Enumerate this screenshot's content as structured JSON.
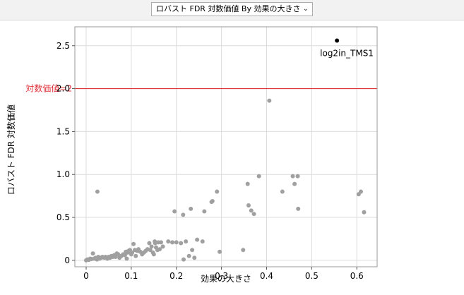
{
  "header": {
    "selector_label": "ロバスト FDR 対数価値 By 効果の大きさ",
    "selector_icon": "chevron-down-icon"
  },
  "chart_data": {
    "type": "scatter",
    "xlabel": "効果の大きさ",
    "ylabel": "ロバスト FDR 対数価値",
    "xlim": [
      -0.025,
      0.645
    ],
    "ylim": [
      -0.075,
      2.72
    ],
    "xticks": [
      0,
      0.1,
      0.2,
      0.3,
      0.4,
      0.5,
      0.6
    ],
    "xtick_labels": [
      "0",
      "0.1",
      "0.2",
      "0.3",
      "0.4",
      "0.5",
      "0.6"
    ],
    "yticks": [
      0,
      0.5,
      1.0,
      1.5,
      2.0,
      2.5
    ],
    "ytick_labels": [
      "0",
      "0.5",
      "1.0",
      "1.5",
      "2.0",
      "2.5"
    ],
    "grid": true,
    "reference_line": {
      "y": 2,
      "label": "対数価値=2",
      "color": "#e0303a"
    },
    "colors": {
      "points": "#a0a0a0",
      "highlight": "#000000",
      "grid": "#dcdcdc",
      "frame": "#9a9a9a"
    },
    "highlight": {
      "x": 0.556,
      "y": 2.56,
      "label": "log2in_TMS1"
    },
    "points": [
      [
        0.0,
        0.0
      ],
      [
        0.003,
        0.01
      ],
      [
        0.006,
        0.005
      ],
      [
        0.009,
        0.02
      ],
      [
        0.012,
        0.015
      ],
      [
        0.015,
        0.08
      ],
      [
        0.018,
        0.02
      ],
      [
        0.021,
        0.03
      ],
      [
        0.024,
        0.01
      ],
      [
        0.025,
        0.8
      ],
      [
        0.027,
        0.04
      ],
      [
        0.03,
        0.02
      ],
      [
        0.033,
        0.03
      ],
      [
        0.036,
        0.04
      ],
      [
        0.04,
        0.03
      ],
      [
        0.043,
        0.04
      ],
      [
        0.047,
        0.02
      ],
      [
        0.05,
        0.04
      ],
      [
        0.053,
        0.03
      ],
      [
        0.056,
        0.05
      ],
      [
        0.059,
        0.04
      ],
      [
        0.062,
        0.06
      ],
      [
        0.065,
        0.04
      ],
      [
        0.068,
        0.08
      ],
      [
        0.071,
        0.07
      ],
      [
        0.074,
        0.03
      ],
      [
        0.078,
        0.05
      ],
      [
        0.082,
        0.07
      ],
      [
        0.086,
        0.06
      ],
      [
        0.088,
        0.1
      ],
      [
        0.09,
        0.02
      ],
      [
        0.092,
        0.09
      ],
      [
        0.094,
        0.11
      ],
      [
        0.097,
        0.12
      ],
      [
        0.1,
        0.07
      ],
      [
        0.102,
        0.09
      ],
      [
        0.105,
        0.19
      ],
      [
        0.108,
        0.12
      ],
      [
        0.11,
        0.05
      ],
      [
        0.113,
        0.11
      ],
      [
        0.116,
        0.13
      ],
      [
        0.12,
        0.1
      ],
      [
        0.124,
        0.07
      ],
      [
        0.128,
        0.09
      ],
      [
        0.132,
        0.11
      ],
      [
        0.136,
        0.13
      ],
      [
        0.14,
        0.2
      ],
      [
        0.142,
        0.12
      ],
      [
        0.145,
        0.16
      ],
      [
        0.148,
        0.09
      ],
      [
        0.15,
        0.07
      ],
      [
        0.152,
        0.22
      ],
      [
        0.153,
        0.2
      ],
      [
        0.155,
        0.15
      ],
      [
        0.158,
        0.12
      ],
      [
        0.16,
        0.21
      ],
      [
        0.163,
        0.13
      ],
      [
        0.166,
        0.21
      ],
      [
        0.17,
        0.16
      ],
      [
        0.182,
        0.22
      ],
      [
        0.191,
        0.21
      ],
      [
        0.196,
        0.57
      ],
      [
        0.2,
        0.21
      ],
      [
        0.21,
        0.2
      ],
      [
        0.215,
        0.53
      ],
      [
        0.216,
        0.01
      ],
      [
        0.221,
        0.22
      ],
      [
        0.228,
        0.05
      ],
      [
        0.232,
        0.6
      ],
      [
        0.235,
        0.12
      ],
      [
        0.24,
        0.03
      ],
      [
        0.246,
        0.24
      ],
      [
        0.258,
        0.22
      ],
      [
        0.262,
        0.57
      ],
      [
        0.278,
        0.68
      ],
      [
        0.28,
        0.69
      ],
      [
        0.29,
        0.8
      ],
      [
        0.296,
        0.1
      ],
      [
        0.348,
        0.12
      ],
      [
        0.358,
        0.89
      ],
      [
        0.36,
        0.64
      ],
      [
        0.366,
        0.58
      ],
      [
        0.372,
        0.54
      ],
      [
        0.383,
        0.98
      ],
      [
        0.406,
        1.86
      ],
      [
        0.435,
        0.8
      ],
      [
        0.458,
        0.98
      ],
      [
        0.462,
        0.89
      ],
      [
        0.469,
        0.98
      ],
      [
        0.47,
        0.6
      ],
      [
        0.604,
        0.77
      ],
      [
        0.609,
        0.8
      ],
      [
        0.616,
        0.56
      ]
    ]
  }
}
